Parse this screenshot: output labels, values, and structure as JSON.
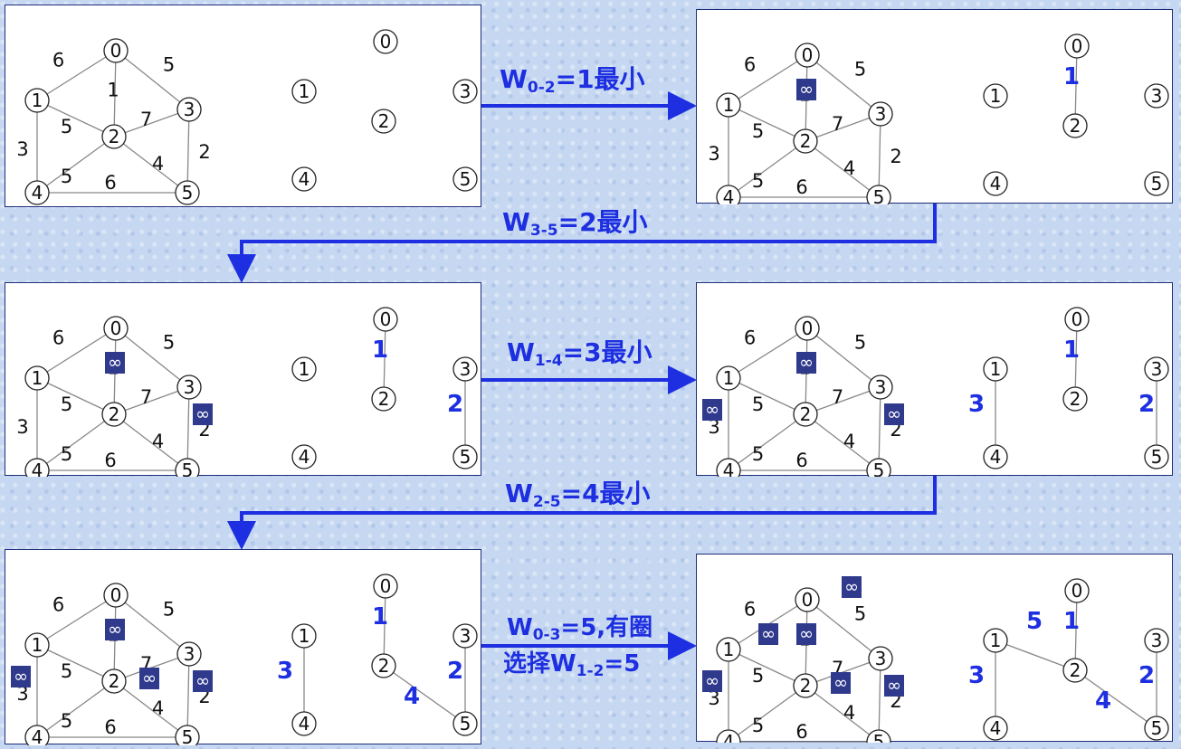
{
  "graph": {
    "vertices": [
      "0",
      "1",
      "2",
      "3",
      "4",
      "5"
    ],
    "edges": [
      {
        "u": "0",
        "v": "1",
        "w": "6"
      },
      {
        "u": "0",
        "v": "3",
        "w": "5"
      },
      {
        "u": "0",
        "v": "2",
        "w": "1"
      },
      {
        "u": "1",
        "v": "2",
        "w": "5"
      },
      {
        "u": "2",
        "v": "3",
        "w": "7"
      },
      {
        "u": "1",
        "v": "4",
        "w": "3"
      },
      {
        "u": "2",
        "v": "4",
        "w": "5"
      },
      {
        "u": "2",
        "v": "5",
        "w": "4"
      },
      {
        "u": "3",
        "v": "5",
        "w": "2"
      },
      {
        "u": "4",
        "v": "5",
        "w": "6"
      }
    ],
    "infinity_symbol": "∞"
  },
  "colors": {
    "accent": "#1d2fe0",
    "infinity_box": "#303a8c",
    "panel_border": "#1f2d7a",
    "background": "#c6d8f1"
  },
  "steps": [
    {
      "step": 1,
      "infinity_edges": [],
      "tree_edges": []
    },
    {
      "step": 2,
      "infinity_edges": [
        "0-2"
      ],
      "tree_edges": [
        {
          "edge": "0-2",
          "w": "1"
        }
      ]
    },
    {
      "step": 3,
      "infinity_edges": [
        "0-2",
        "3-5"
      ],
      "tree_edges": [
        {
          "edge": "0-2",
          "w": "1"
        },
        {
          "edge": "3-5",
          "w": "2"
        }
      ]
    },
    {
      "step": 4,
      "infinity_edges": [
        "0-2",
        "3-5",
        "1-4"
      ],
      "tree_edges": [
        {
          "edge": "0-2",
          "w": "1"
        },
        {
          "edge": "3-5",
          "w": "2"
        },
        {
          "edge": "1-4",
          "w": "3"
        }
      ]
    },
    {
      "step": 5,
      "infinity_edges": [
        "0-2",
        "3-5",
        "1-4",
        "2-5"
      ],
      "tree_edges": [
        {
          "edge": "0-2",
          "w": "1"
        },
        {
          "edge": "3-5",
          "w": "2"
        },
        {
          "edge": "1-4",
          "w": "3"
        },
        {
          "edge": "2-5",
          "w": "4"
        }
      ]
    },
    {
      "step": 6,
      "infinity_edges": [
        "0-2",
        "3-5",
        "1-4",
        "2-5",
        "0-3",
        "1-2"
      ],
      "tree_edges": [
        {
          "edge": "0-2",
          "w": "1"
        },
        {
          "edge": "3-5",
          "w": "2"
        },
        {
          "edge": "1-4",
          "w": "3"
        },
        {
          "edge": "2-5",
          "w": "4"
        },
        {
          "edge": "1-2",
          "w": "5"
        }
      ]
    }
  ],
  "transitions": {
    "t1": {
      "prefix": "W",
      "sub": "0-2",
      "suffix": "=1最小"
    },
    "t2": {
      "prefix": "W",
      "sub": "3-5",
      "suffix": "=2最小"
    },
    "t3": {
      "prefix": "W",
      "sub": "1-4",
      "suffix": "=3最小"
    },
    "t4": {
      "prefix": "W",
      "sub": "2-5",
      "suffix": "=4最小"
    },
    "t5a": {
      "prefix": "W",
      "sub": "0-3",
      "suffix": "=5,有圈"
    },
    "t5b": {
      "prefix": "选择W",
      "sub": "1-2",
      "suffix": "=5"
    }
  }
}
